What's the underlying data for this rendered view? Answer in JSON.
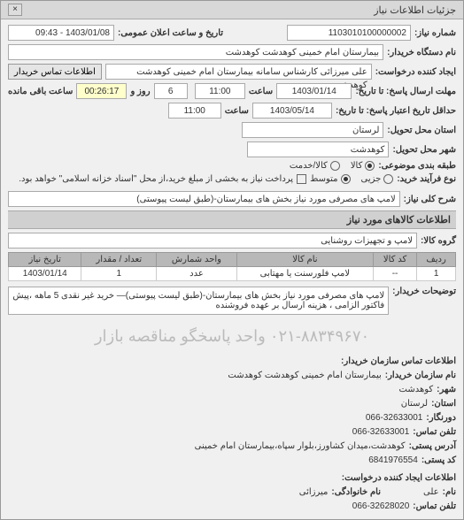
{
  "window": {
    "title": "جزئیات اطلاعات نیاز"
  },
  "header": {
    "req_no_label": "شماره نیاز:",
    "req_no": "1103010100000002",
    "announce_label": "تاریخ و ساعت اعلان عمومی:",
    "announce_value": "1403/01/08 - 09:43",
    "buyer_label": "نام دستگاه خریدار:",
    "buyer_value": "بیمارستان امام خمینی کوهدشت کوهدشت",
    "creator_label": "ایجاد کننده درخواست:",
    "creator_value": "علی میرزائی کارشناس سامانه بیمارستان امام خمینی کوهدشت کوهدشت",
    "contact_btn": "اطلاعات تماس خریدار",
    "reply_deadline_label": "مهلت ارسال پاسخ: تا تاریخ:",
    "reply_date": "1403/01/14",
    "reply_time_label": "ساعت",
    "reply_time": "11:00",
    "days_and": "روز و",
    "days_value": "6",
    "remaining_label": "ساعت باقی مانده",
    "remaining_time": "00:26:17",
    "valid_deadline_label": "حداقل تاریخ اعتبار پاسخ: تا تاریخ:",
    "valid_date": "1403/05/14",
    "valid_time_label": "ساعت",
    "valid_time": "11:00",
    "exec_location_label": "استان محل تحویل:",
    "exec_location_value": "لرستان",
    "delivery_city_label": "شهر محل تحویل:",
    "delivery_city_value": "کوهدشت",
    "category_label": "طبقه بندی موضوعی:",
    "payment_type_label": "نوع فرآیند خرید:",
    "payment_note": "پرداخت نیاز به بخشی از مبلغ خرید،از محل \"اسناد خزانه اسلامی\" خواهد بود."
  },
  "radios": {
    "goods": "کالا",
    "partial": "جزیی",
    "middle": "متوسط",
    "service": "کالا/خدمت"
  },
  "need": {
    "title_label": "شرح کلی نیاز:",
    "title_value": "لامپ های مصرفی مورد نیاز بخش های بیمارستان-(طبق لیست پیوستی)"
  },
  "goods_section": {
    "title": "اطلاعات کالاهای مورد نیاز"
  },
  "group": {
    "label": "گروه کالا:",
    "value": "لامپ و تجهیزات روشنایی"
  },
  "table": {
    "columns": [
      "ردیف",
      "کد کالا",
      "نام کالا",
      "واحد شمارش",
      "تعداد / مقدار",
      "تاریخ نیاز"
    ],
    "rows": [
      [
        "1",
        "--",
        "لامپ فلورسنت یا مهتابی",
        "عدد",
        "1",
        "1403/01/14"
      ]
    ]
  },
  "desc": {
    "label": "توضیحات خریدار:",
    "value": "لامپ های مصرفی مورد نیاز بخش های بیمارستان-(طبق لیست پیوستی)— خرید غیر نقدی 5 ماهه ،پیش فاکتور الزامی ، هزینه ارسال بر عهده فروشنده"
  },
  "watermark": "۰۲۱-۸۸۳۴۹۶۷۰ واحد پاسخگو مناقصه بازار",
  "contact": {
    "section_title": "اطلاعات تماس سازمان خریدار:",
    "org_label": "نام سازمان خریدار:",
    "org_value": "بیمارستان امام خمینی کوهدشت کوهدشت",
    "city_label": "شهر:",
    "city_value": "کوهدشت",
    "province_label": "استان:",
    "province_value": "لرستان",
    "fax_label": "دورنگار:",
    "fax_value": "066-32633001",
    "phone_label": "تلفن تماس:",
    "phone_value": "066-32633001",
    "address_label": "آدرس پستی:",
    "address_value": "کوهدشت،میدان کشاورز،بلوار سپاه،بیمارستان امام خمینی",
    "postal_label": "کد پستی:",
    "postal_value": "6841976554",
    "creator_section": "اطلاعات ایجاد کننده درخواست:",
    "fname_label": "نام:",
    "fname_value": "علی",
    "lname_label": "نام خانوادگی:",
    "lname_value": "میرزائی",
    "cphone_label": "تلفن تماس:",
    "cphone_value": "066-32628020"
  }
}
